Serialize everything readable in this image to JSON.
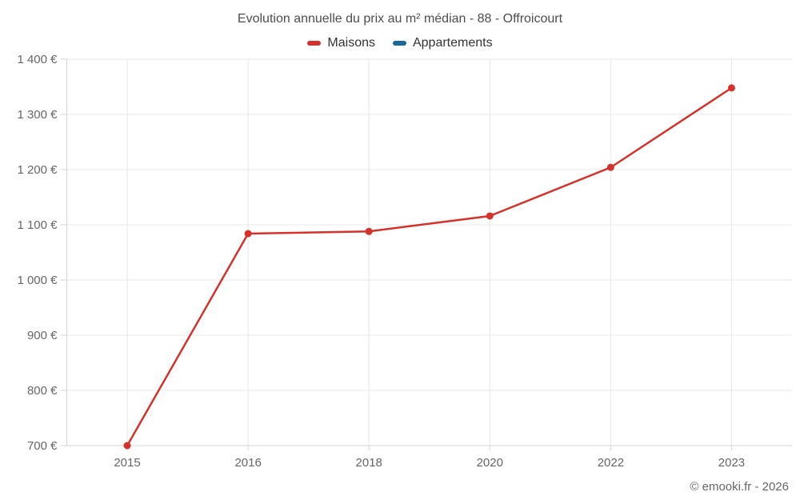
{
  "chart": {
    "title": "Evolution annuelle du prix au m² médian - 88 - Offroicourt",
    "footer": "© emooki.fr - 2026"
  },
  "chart_data": {
    "type": "line",
    "title": "Evolution annuelle du prix au m² médian - 88 - Offroicourt",
    "categories": [
      "2015",
      "2016",
      "2018",
      "2020",
      "2022",
      "2023"
    ],
    "series": [
      {
        "name": "Maisons",
        "color": "#d6312b",
        "values": [
          700,
          1084,
          1088,
          1116,
          1204,
          1348
        ]
      },
      {
        "name": "Appartements",
        "color": "#1a699c",
        "values": []
      }
    ],
    "ylim": [
      700,
      1400
    ],
    "y_ticks": [
      700,
      800,
      900,
      1000,
      1100,
      1200,
      1300,
      1400
    ],
    "y_tick_labels": [
      "700 €",
      "800 €",
      "900 €",
      "1 000 €",
      "1 100 €",
      "1 200 €",
      "1 300 €",
      "1 400 €"
    ],
    "xlabel": "",
    "ylabel": "",
    "grid": true,
    "legend_position": "top",
    "colors": {
      "grid": "#e8e8e8",
      "axis": "#d4d4d4",
      "tick_text": "#666666",
      "title_text": "#4d4d4d",
      "legend_text": "#333333",
      "background": "#ffffff"
    }
  }
}
